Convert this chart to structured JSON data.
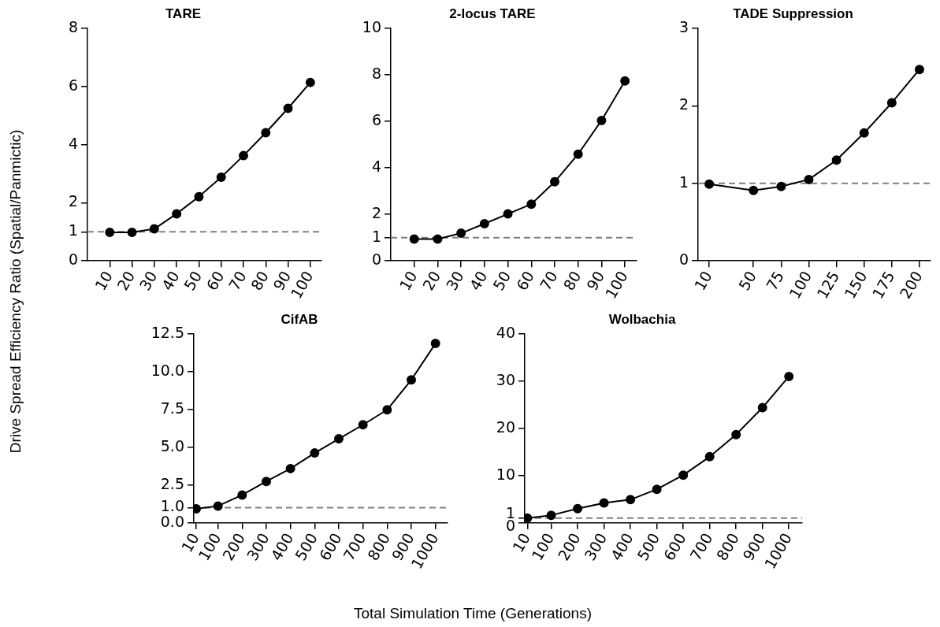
{
  "chart_data": [
    {
      "type": "line",
      "title": "TARE",
      "ylabel": "Drive Spread Efficiency Ratio (Spatial/Panmictic)",
      "x": [
        10,
        20,
        30,
        40,
        50,
        60,
        70,
        80,
        90,
        100
      ],
      "xlim": [
        0,
        105
      ],
      "xticks": [
        10,
        20,
        30,
        40,
        50,
        60,
        70,
        80,
        90,
        100
      ],
      "ylim": [
        0,
        8
      ],
      "yticks": [
        0,
        1,
        2,
        4,
        6,
        8
      ],
      "marker": "circle",
      "line_style": "solid",
      "grid": false,
      "legend": false,
      "series": [
        {
          "color": "#000000",
          "values": [
            0.98,
            0.98,
            1.1,
            1.62,
            2.21,
            2.88,
            3.62,
            4.41,
            5.25,
            6.14
          ]
        }
      ],
      "ref_lines": [
        {
          "axis": "y",
          "value": 1,
          "color": "#808080",
          "line_style": "dashed"
        }
      ]
    },
    {
      "type": "line",
      "title": "2-locus TARE",
      "x": [
        10,
        20,
        30,
        40,
        50,
        60,
        70,
        80,
        90,
        100
      ],
      "xlim": [
        0,
        105
      ],
      "xticks": [
        10,
        20,
        30,
        40,
        50,
        60,
        70,
        80,
        90,
        100
      ],
      "ylim": [
        0,
        10
      ],
      "yticks": [
        0,
        1,
        2,
        4,
        6,
        8,
        10
      ],
      "marker": "circle",
      "line_style": "solid",
      "grid": false,
      "legend": false,
      "series": [
        {
          "color": "#000000",
          "values": [
            0.94,
            0.94,
            1.19,
            1.6,
            2.02,
            2.44,
            3.4,
            4.59,
            6.04,
            7.74
          ]
        }
      ],
      "ref_lines": [
        {
          "axis": "y",
          "value": 1,
          "color": "#808080",
          "line_style": "dashed"
        }
      ]
    },
    {
      "type": "line",
      "title": "TADE Suppression",
      "x": [
        10,
        50,
        75,
        100,
        125,
        150,
        175,
        200
      ],
      "xlim": [
        0,
        210
      ],
      "xticks": [
        10,
        50,
        75,
        100,
        125,
        150,
        175,
        200
      ],
      "ylim": [
        0,
        3
      ],
      "yticks": [
        0,
        1,
        2,
        3
      ],
      "marker": "circle",
      "line_style": "solid",
      "grid": false,
      "legend": false,
      "series": [
        {
          "color": "#000000",
          "values": [
            0.99,
            0.91,
            0.96,
            1.05,
            1.3,
            1.65,
            2.04,
            2.47
          ]
        }
      ],
      "ref_lines": [
        {
          "axis": "y",
          "value": 1,
          "color": "#808080",
          "line_style": "dashed"
        }
      ]
    },
    {
      "type": "line",
      "title": "CifAB",
      "xlabel": "Total Simulation Time (Generations)",
      "x": [
        10,
        100,
        200,
        300,
        400,
        500,
        600,
        700,
        800,
        900,
        1000
      ],
      "xlim": [
        0,
        1050
      ],
      "xticks": [
        10,
        100,
        200,
        300,
        400,
        500,
        600,
        700,
        800,
        900,
        1000
      ],
      "ylim": [
        0,
        12.5
      ],
      "yticks": [
        {
          "value": 0,
          "label": "0.0"
        },
        {
          "value": 1,
          "label": "1.0"
        },
        {
          "value": 2.5,
          "label": "2.5"
        },
        {
          "value": 5,
          "label": "5.0"
        },
        {
          "value": 7.5,
          "label": "7.5"
        },
        {
          "value": 10,
          "label": "10.0"
        },
        {
          "value": 12.5,
          "label": "12.5"
        }
      ],
      "marker": "circle",
      "line_style": "solid",
      "grid": false,
      "legend": false,
      "series": [
        {
          "color": "#000000",
          "values": [
            0.93,
            1.11,
            1.84,
            2.74,
            3.59,
            4.62,
            5.56,
            6.49,
            7.48,
            9.46,
            11.87
          ]
        }
      ],
      "ref_lines": [
        {
          "axis": "y",
          "value": 1,
          "color": "#808080",
          "line_style": "dashed"
        }
      ]
    },
    {
      "type": "line",
      "title": "Wolbachia",
      "x": [
        10,
        100,
        200,
        300,
        400,
        500,
        600,
        700,
        800,
        900,
        1000
      ],
      "xlim": [
        0,
        1050
      ],
      "xticks": [
        10,
        100,
        200,
        300,
        400,
        500,
        600,
        700,
        800,
        900,
        1000
      ],
      "ylim": [
        0,
        40
      ],
      "yticks": [
        0,
        1,
        10,
        20,
        30,
        40
      ],
      "marker": "circle",
      "line_style": "solid",
      "grid": false,
      "legend": false,
      "series": [
        {
          "color": "#000000",
          "values": [
            1.0,
            1.6,
            3.0,
            4.2,
            4.9,
            7.1,
            10.1,
            14.0,
            18.7,
            24.4,
            31.0
          ]
        }
      ],
      "ref_lines": [
        {
          "axis": "y",
          "value": 1,
          "color": "#808080",
          "line_style": "dashed"
        }
      ]
    }
  ]
}
